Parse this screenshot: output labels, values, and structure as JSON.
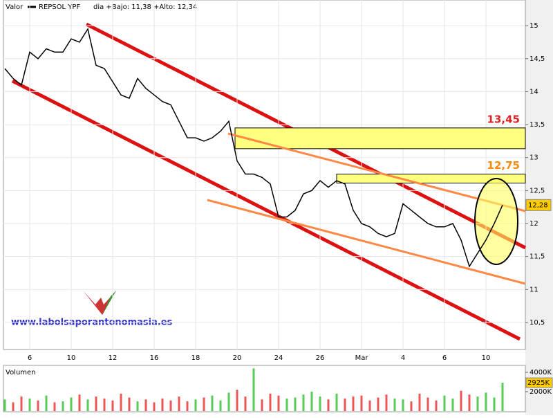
{
  "legend": {
    "label": "Valor",
    "name": "REPSOL YPF",
    "range": "dia +Bajo: 11,38 +Alto: 12,34"
  },
  "watermark": "www.labolsaporantonomasia.es",
  "chart_data": [
    {
      "type": "line",
      "categories": [
        null,
        null,
        null,
        "6",
        null,
        null,
        null,
        null,
        "10",
        null,
        null,
        null,
        null,
        "12",
        null,
        null,
        null,
        null,
        "16",
        null,
        null,
        null,
        null,
        "18",
        null,
        null,
        null,
        null,
        "20",
        null,
        null,
        null,
        null,
        "24",
        null,
        null,
        null,
        null,
        "26",
        null,
        null,
        null,
        null,
        "Mar",
        null,
        null,
        null,
        null,
        "4",
        null,
        null,
        null,
        null,
        "6",
        null,
        null,
        null,
        null,
        "10",
        null,
        null
      ],
      "series": [
        {
          "name": "REPSOL YPF",
          "color": "#000000",
          "values": [
            14.35,
            14.2,
            14.1,
            14.6,
            14.5,
            14.65,
            14.6,
            14.6,
            14.8,
            14.75,
            14.95,
            14.4,
            14.35,
            14.15,
            13.95,
            13.9,
            14.2,
            14.05,
            13.95,
            13.85,
            13.8,
            13.55,
            13.3,
            13.3,
            13.25,
            13.3,
            13.4,
            13.55,
            12.95,
            12.75,
            12.75,
            12.7,
            12.6,
            12.1,
            12.1,
            12.2,
            12.45,
            12.5,
            12.65,
            12.55,
            12.65,
            12.6,
            12.2,
            12.0,
            11.95,
            11.85,
            11.8,
            11.85,
            12.3,
            12.2,
            12.1,
            12.0,
            11.95,
            11.95,
            12.0,
            11.75,
            11.35,
            11.55,
            11.75,
            12.0,
            12.28
          ],
          "value_labels": [
            null,
            null,
            null,
            null,
            null,
            null,
            null,
            null,
            null,
            null,
            null,
            null,
            null,
            null,
            null,
            null,
            null,
            null,
            null,
            null,
            null,
            null,
            null,
            null,
            null,
            null,
            null,
            null,
            null,
            null,
            null,
            null,
            null,
            null,
            null,
            null,
            null,
            null,
            null,
            null,
            null,
            null,
            null,
            null,
            null,
            null,
            null,
            null,
            null,
            null,
            null,
            null,
            null,
            null,
            null,
            null,
            null,
            null,
            null,
            null,
            "12,28"
          ]
        }
      ],
      "ylim": [
        10.09,
        15.39
      ],
      "yticks": [
        {
          "value": 10.5,
          "label": "10,5"
        },
        11,
        {
          "value": 11.5,
          "label": "11,5"
        },
        12,
        {
          "value": 12.5,
          "label": "12,5"
        },
        13,
        {
          "value": 13.5,
          "label": "13,5"
        },
        14,
        {
          "value": 14.5,
          "label": "14,5"
        },
        15
      ],
      "grid": true,
      "levels": [
        {
          "value": 13.45,
          "label": "13,45"
        },
        {
          "value": 12.75,
          "label": "12,75"
        }
      ]
    },
    {
      "type": "bar",
      "title": "Volumen",
      "values": [
        1200,
        900,
        1500,
        1300,
        1100,
        1600,
        900,
        1000,
        1400,
        1700,
        1200,
        1500,
        1300,
        1100,
        1800,
        1400,
        1000,
        1200,
        900,
        1300,
        1100,
        1500,
        1000,
        1200,
        1400,
        1600,
        1100,
        1900,
        2200,
        1500,
        4400,
        1200,
        1800,
        1600,
        1300,
        1400,
        1700,
        2000,
        1500,
        1200,
        1800,
        1300,
        1500,
        1600,
        1100,
        1400,
        1700,
        1300,
        1200,
        1000,
        1800,
        1400,
        1100,
        1600,
        1300,
        2100,
        1700,
        1500,
        1900,
        1400,
        2925
      ],
      "value_labels": [
        null,
        null,
        null,
        null,
        null,
        null,
        null,
        null,
        null,
        null,
        null,
        null,
        null,
        null,
        null,
        null,
        null,
        null,
        null,
        null,
        null,
        null,
        null,
        null,
        null,
        null,
        null,
        null,
        null,
        null,
        null,
        null,
        null,
        null,
        null,
        null,
        null,
        null,
        null,
        null,
        null,
        null,
        null,
        null,
        null,
        null,
        null,
        null,
        null,
        null,
        null,
        null,
        null,
        null,
        null,
        null,
        null,
        null,
        null,
        null,
        "2925K"
      ],
      "ylim": [
        0,
        4570
      ],
      "yticks": [
        {
          "value": 2000,
          "label": "2000K"
        },
        {
          "value": 4000,
          "label": "4000K"
        }
      ]
    }
  ]
}
